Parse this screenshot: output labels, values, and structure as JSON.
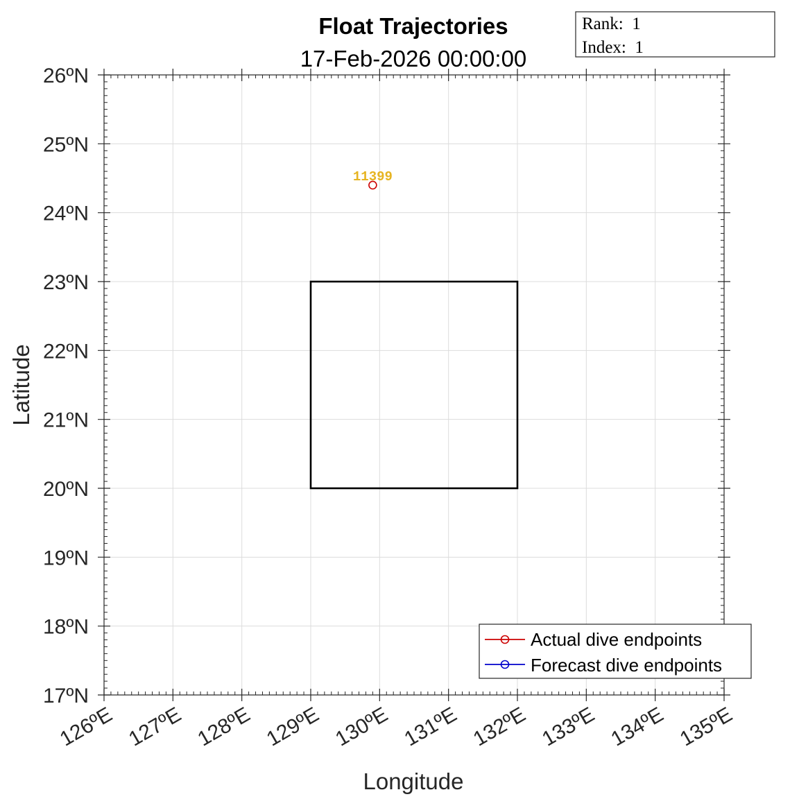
{
  "chart_data": {
    "type": "scatter",
    "title": "Float Trajectories",
    "subtitle": "17-Feb-2026 00:00:00",
    "xlabel": "Longitude",
    "ylabel": "Latitude",
    "xlim": [
      126,
      135
    ],
    "ylim": [
      17,
      26
    ],
    "xticks": [
      126,
      127,
      128,
      129,
      130,
      131,
      132,
      133,
      134,
      135
    ],
    "yticks": [
      17,
      18,
      19,
      20,
      21,
      22,
      23,
      24,
      25,
      26
    ],
    "xtick_labels": [
      "126ºE",
      "127ºE",
      "128ºE",
      "129ºE",
      "130ºE",
      "131ºE",
      "132ºE",
      "133ºE",
      "134ºE",
      "135ºE"
    ],
    "ytick_labels": [
      "17ºN",
      "18ºN",
      "19ºN",
      "20ºN",
      "21ºN",
      "22ºN",
      "23ºN",
      "24ºN",
      "25ºN",
      "26ºN"
    ],
    "grid": true,
    "region_box": {
      "lon": [
        129,
        132
      ],
      "lat": [
        20,
        23
      ],
      "color": "#000000"
    },
    "series": [
      {
        "name": "Actual dive endpoints",
        "color": "#cc0000",
        "marker": "circle",
        "points": [
          {
            "x": 129.9,
            "y": 24.4,
            "label": "11399",
            "label_color": "#e6b422"
          }
        ]
      },
      {
        "name": "Forecast dive endpoints",
        "color": "#0000cc",
        "marker": "circle",
        "points": []
      }
    ],
    "legend_position": "bottom-right"
  },
  "info_box": {
    "lines": [
      "Rank:  1",
      "Index:  1"
    ]
  }
}
